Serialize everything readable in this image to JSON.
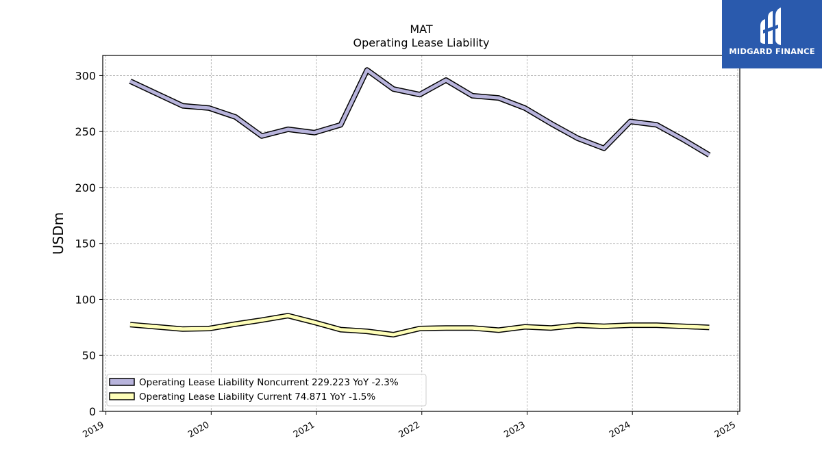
{
  "chart_data": {
    "type": "line",
    "title": "MAT",
    "subtitle": "Operating Lease Liability",
    "ylabel": "USDm",
    "xlabel": "",
    "xlim": [
      2018.97,
      2025.02
    ],
    "ylim": [
      0,
      318
    ],
    "yticks": [
      0,
      50,
      100,
      150,
      200,
      250,
      300
    ],
    "xticks": [
      "2019",
      "2020",
      "2021",
      "2022",
      "2023",
      "2024",
      "2025"
    ],
    "grid": true,
    "legend_position": "lower-left",
    "x": [
      2019.23,
      2019.48,
      2019.73,
      2019.98,
      2020.23,
      2020.48,
      2020.73,
      2020.98,
      2021.23,
      2021.48,
      2021.73,
      2021.98,
      2022.23,
      2022.48,
      2022.73,
      2022.98,
      2023.23,
      2023.48,
      2023.73,
      2023.98,
      2024.23,
      2024.48,
      2024.73
    ],
    "series": [
      {
        "name": "Operating Lease Liability Noncurrent",
        "legend_label": "Operating Lease Liability Noncurrent  229.223 YoY -2.3%",
        "color": "#b8b4dc",
        "values": [
          295,
          284,
          273,
          271,
          263,
          246,
          252,
          249,
          256,
          305,
          288,
          283,
          296,
          282,
          280,
          271,
          257,
          244,
          235,
          259,
          256,
          243,
          229
        ]
      },
      {
        "name": "Operating Lease Liability Current",
        "legend_label": "Operating Lease Liability Current  74.871 YoY -1.5%",
        "color": "#fefeb8",
        "values": [
          77.5,
          75.5,
          73.5,
          74.0,
          78.0,
          81.5,
          85.5,
          79.5,
          73.0,
          71.5,
          68.5,
          74.0,
          74.5,
          74.5,
          72.5,
          75.5,
          74.5,
          77.0,
          76.0,
          77.0,
          77.0,
          76.0,
          75.0
        ]
      }
    ]
  },
  "logo": {
    "text": "MIDGARD FINANCE",
    "icon": "midgard-finance-logo-icon",
    "color": "#2a5aad"
  }
}
